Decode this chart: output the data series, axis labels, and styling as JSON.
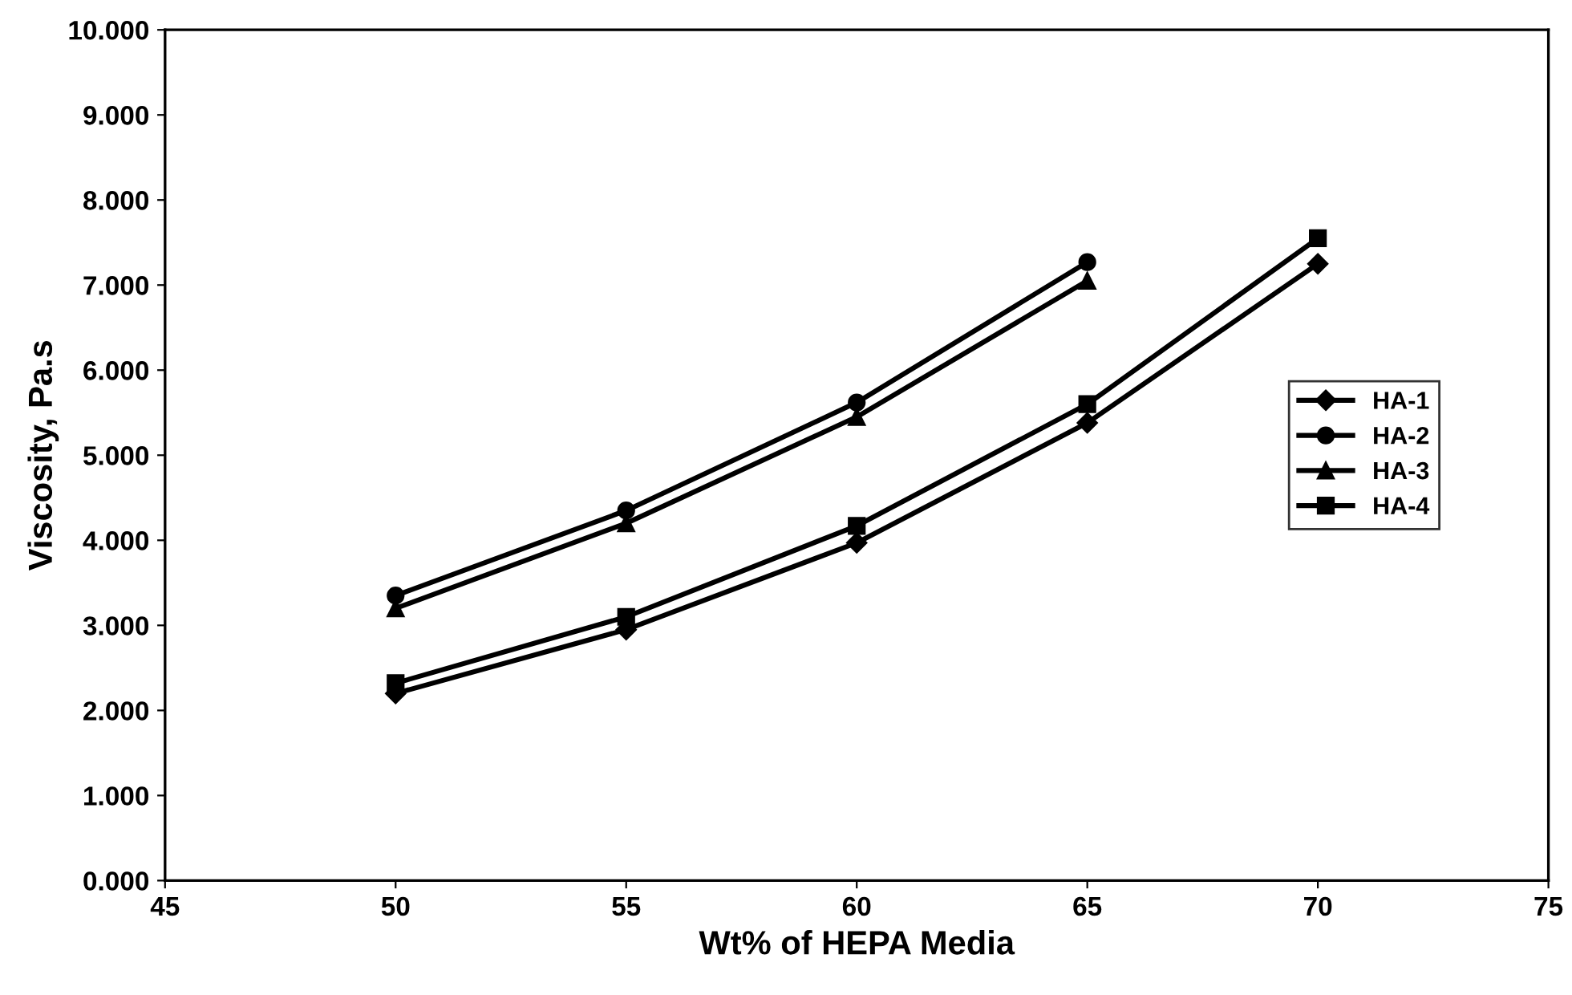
{
  "chart_data": {
    "type": "line",
    "xlabel": "Wt% of HEPA Media",
    "ylabel": "Viscosity, Pa.s",
    "xlim": [
      45,
      75
    ],
    "xticks": [
      45,
      50,
      55,
      60,
      65,
      70,
      75
    ],
    "ylim": [
      0,
      10
    ],
    "yticks": [
      {
        "value": 0,
        "label": "0.000"
      },
      {
        "value": 1,
        "label": "1.000"
      },
      {
        "value": 2,
        "label": "2.000"
      },
      {
        "value": 3,
        "label": "3.000"
      },
      {
        "value": 4,
        "label": "4.000"
      },
      {
        "value": 5,
        "label": "5.000"
      },
      {
        "value": 6,
        "label": "6.000"
      },
      {
        "value": 7,
        "label": "7.000"
      },
      {
        "value": 8,
        "label": "8.000"
      },
      {
        "value": 9,
        "label": "9.000"
      },
      {
        "value": 10,
        "label": "10.000"
      }
    ],
    "grid": false,
    "legend": "right",
    "line_style": "solid",
    "series": [
      {
        "name": "HA-1",
        "color": "#000000",
        "marker": "diamond",
        "x": [
          50,
          55,
          60,
          65,
          70
        ],
        "values": [
          2.2,
          2.95,
          3.97,
          5.38,
          7.25
        ]
      },
      {
        "name": "HA-2",
        "color": "#000000",
        "marker": "circle",
        "x": [
          50,
          55,
          60,
          65
        ],
        "values": [
          3.35,
          4.35,
          5.62,
          7.27
        ]
      },
      {
        "name": "HA-3",
        "color": "#000000",
        "marker": "triangle",
        "x": [
          50,
          55,
          60,
          65
        ],
        "values": [
          3.2,
          4.2,
          5.45,
          7.05
        ]
      },
      {
        "name": "HA-4",
        "color": "#000000",
        "marker": "square",
        "x": [
          50,
          55,
          60,
          65,
          70
        ],
        "values": [
          2.32,
          3.1,
          4.17,
          5.6,
          7.55
        ]
      }
    ]
  }
}
